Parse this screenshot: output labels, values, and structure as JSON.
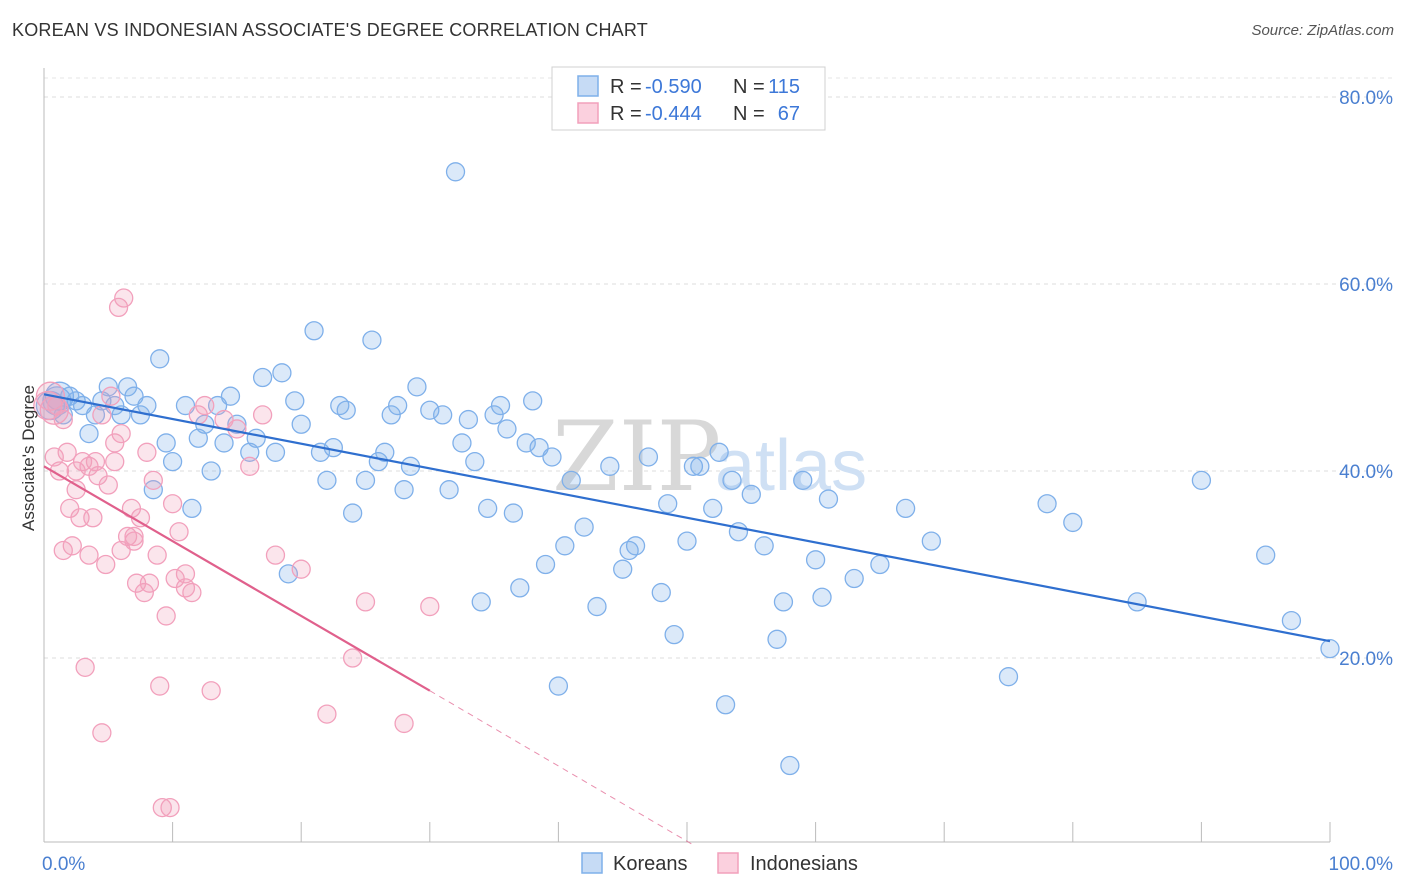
{
  "header": {
    "title": "KOREAN VS INDONESIAN ASSOCIATE'S DEGREE CORRELATION CHART",
    "source": "Source: ZipAtlas.com"
  },
  "watermark": {
    "zip": "ZIP",
    "atlas": "atlas"
  },
  "legend": {
    "r_label": "R = ",
    "n_label": "N = ",
    "rows": [
      {
        "series": "Koreans",
        "r": "-0.590",
        "n": "115",
        "color": "#7fb0ea"
      },
      {
        "series": "Indonesians",
        "r": "-0.444",
        "n": "67",
        "color": "#f2a0bc"
      }
    ]
  },
  "bottom_legend": [
    "Koreans",
    "Indonesians"
  ],
  "chart_data": {
    "type": "scatter",
    "title": "KOREAN VS INDONESIAN ASSOCIATE'S DEGREE CORRELATION CHART",
    "xlabel": "",
    "ylabel": "Associate's Degree",
    "xlim": [
      0,
      100
    ],
    "ylim": [
      0,
      80
    ],
    "x_tick_labels": [
      "0.0%",
      "100.0%"
    ],
    "y_ticks": [
      20,
      40,
      60,
      80
    ],
    "y_tick_labels": [
      "20.0%",
      "40.0%",
      "60.0%",
      "80.0%"
    ],
    "grid": true,
    "legend_position": "top-center",
    "series": [
      {
        "name": "Koreans",
        "color": "#7fb0ea",
        "line_color": "#2f6fcf",
        "trend": {
          "x": [
            0,
            100
          ],
          "y": [
            48.2,
            21.8
          ]
        },
        "points": [
          [
            0.5,
            47
          ],
          [
            1,
            47.5
          ],
          [
            1.2,
            48
          ],
          [
            1.5,
            46
          ],
          [
            2,
            48
          ],
          [
            2.5,
            47.5
          ],
          [
            3,
            47
          ],
          [
            3.5,
            44
          ],
          [
            4,
            46
          ],
          [
            4.5,
            47.5
          ],
          [
            5,
            49
          ],
          [
            5.5,
            47
          ],
          [
            6,
            46
          ],
          [
            6.5,
            49
          ],
          [
            7,
            48
          ],
          [
            7.5,
            46
          ],
          [
            8,
            47
          ],
          [
            8.5,
            38
          ],
          [
            9,
            52
          ],
          [
            9.5,
            43
          ],
          [
            10,
            41
          ],
          [
            11,
            47
          ],
          [
            11.5,
            36
          ],
          [
            12,
            43.5
          ],
          [
            12.5,
            45
          ],
          [
            13,
            40
          ],
          [
            13.5,
            47
          ],
          [
            14,
            43
          ],
          [
            14.5,
            48
          ],
          [
            15,
            45
          ],
          [
            16,
            42
          ],
          [
            16.5,
            43.5
          ],
          [
            17,
            50
          ],
          [
            18,
            42
          ],
          [
            18.5,
            50.5
          ],
          [
            19,
            29
          ],
          [
            19.5,
            47.5
          ],
          [
            20,
            45
          ],
          [
            21,
            55
          ],
          [
            21.5,
            42
          ],
          [
            22,
            39
          ],
          [
            22.5,
            42.5
          ],
          [
            23,
            47
          ],
          [
            23.5,
            46.5
          ],
          [
            24,
            35.5
          ],
          [
            25,
            39
          ],
          [
            25.5,
            54
          ],
          [
            26,
            41
          ],
          [
            26.5,
            42
          ],
          [
            27,
            46
          ],
          [
            27.5,
            47
          ],
          [
            28,
            38
          ],
          [
            28.5,
            40.5
          ],
          [
            29,
            49
          ],
          [
            30,
            46.5
          ],
          [
            31,
            46
          ],
          [
            31.5,
            38
          ],
          [
            32,
            72
          ],
          [
            32.5,
            43
          ],
          [
            33,
            45.5
          ],
          [
            33.5,
            41
          ],
          [
            34,
            26
          ],
          [
            34.5,
            36
          ],
          [
            35,
            46
          ],
          [
            35.5,
            47
          ],
          [
            36,
            44.5
          ],
          [
            36.5,
            35.5
          ],
          [
            37,
            27.5
          ],
          [
            37.5,
            43
          ],
          [
            38,
            47.5
          ],
          [
            38.5,
            42.5
          ],
          [
            39,
            30
          ],
          [
            39.5,
            41.5
          ],
          [
            40,
            17
          ],
          [
            40.5,
            32
          ],
          [
            41,
            39
          ],
          [
            42,
            34
          ],
          [
            43,
            25.5
          ],
          [
            44,
            40.5
          ],
          [
            45,
            29.5
          ],
          [
            45.5,
            31.5
          ],
          [
            46,
            32
          ],
          [
            47,
            41.5
          ],
          [
            48,
            27
          ],
          [
            48.5,
            36.5
          ],
          [
            49,
            22.5
          ],
          [
            50,
            32.5
          ],
          [
            50.5,
            40.5
          ],
          [
            51,
            40.5
          ],
          [
            52,
            36
          ],
          [
            52.5,
            42
          ],
          [
            53,
            15
          ],
          [
            53.5,
            39
          ],
          [
            54,
            33.5
          ],
          [
            55,
            37.5
          ],
          [
            56,
            32
          ],
          [
            57,
            22
          ],
          [
            57.5,
            26
          ],
          [
            58,
            8.5
          ],
          [
            59,
            39
          ],
          [
            60,
            30.5
          ],
          [
            60.5,
            26.5
          ],
          [
            61,
            37
          ],
          [
            63,
            28.5
          ],
          [
            65,
            30
          ],
          [
            67,
            36
          ],
          [
            69,
            32.5
          ],
          [
            75,
            18
          ],
          [
            78,
            36.5
          ],
          [
            80,
            34.5
          ],
          [
            85,
            26
          ],
          [
            90,
            39
          ],
          [
            95,
            31
          ],
          [
            97,
            24
          ],
          [
            100,
            21
          ]
        ]
      },
      {
        "name": "Indonesians",
        "color": "#f2a0bc",
        "line_color": "#e0608c",
        "trend": {
          "x": [
            0,
            30
          ],
          "y": [
            40.5,
            16.5
          ]
        },
        "trend_extension": {
          "x": [
            30,
            50.5
          ],
          "y": [
            16.5,
            0
          ]
        },
        "points": [
          [
            0.3,
            47
          ],
          [
            0.5,
            48
          ],
          [
            0.8,
            46.5
          ],
          [
            1,
            47
          ],
          [
            1.2,
            40
          ],
          [
            1.5,
            45.5
          ],
          [
            1.8,
            42
          ],
          [
            2,
            36
          ],
          [
            2.2,
            32
          ],
          [
            2.5,
            38
          ],
          [
            2.8,
            35
          ],
          [
            3,
            41
          ],
          [
            3.2,
            19
          ],
          [
            3.5,
            31
          ],
          [
            3.8,
            35
          ],
          [
            4,
            41
          ],
          [
            4.2,
            39.5
          ],
          [
            4.5,
            12
          ],
          [
            4.8,
            30
          ],
          [
            5,
            38.5
          ],
          [
            5.2,
            48
          ],
          [
            5.5,
            43
          ],
          [
            5.8,
            57.5
          ],
          [
            6,
            31.5
          ],
          [
            6.2,
            58.5
          ],
          [
            6.5,
            33
          ],
          [
            6.8,
            36
          ],
          [
            7,
            33
          ],
          [
            7.2,
            28
          ],
          [
            7.5,
            35
          ],
          [
            7.8,
            27
          ],
          [
            8,
            42
          ],
          [
            8.2,
            28
          ],
          [
            8.5,
            39
          ],
          [
            8.8,
            31
          ],
          [
            9,
            17
          ],
          [
            9.2,
            4
          ],
          [
            9.5,
            24.5
          ],
          [
            9.8,
            4
          ],
          [
            10,
            36.5
          ],
          [
            10.2,
            28.5
          ],
          [
            10.5,
            33.5
          ],
          [
            11,
            29
          ],
          [
            11.5,
            27
          ],
          [
            12,
            46
          ],
          [
            12.5,
            47
          ],
          [
            13,
            16.5
          ],
          [
            14,
            45.5
          ],
          [
            15,
            44.5
          ],
          [
            16,
            40.5
          ],
          [
            17,
            46
          ],
          [
            18,
            31
          ],
          [
            20,
            29.5
          ],
          [
            22,
            14
          ],
          [
            24,
            20
          ],
          [
            25,
            26
          ],
          [
            28,
            13
          ],
          [
            30,
            25.5
          ],
          [
            3.5,
            40.5
          ],
          [
            4.5,
            46
          ],
          [
            5.5,
            41
          ],
          [
            6,
            44
          ],
          [
            7,
            32.5
          ],
          [
            1.5,
            31.5
          ],
          [
            2.5,
            40
          ],
          [
            0.8,
            41.5
          ],
          [
            11,
            27.5
          ]
        ]
      }
    ]
  }
}
